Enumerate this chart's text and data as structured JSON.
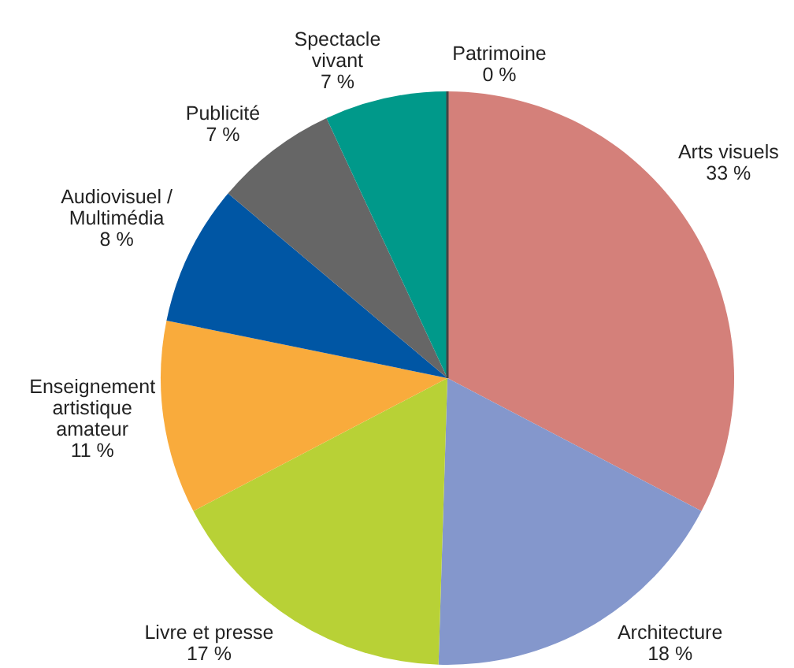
{
  "chart_data": {
    "type": "pie",
    "categories": [
      "Arts visuels",
      "Architecture",
      "Livre et presse",
      "Enseignement\nartistique\namateur",
      "Audiovisuel /\nMultimédia",
      "Publicité",
      "Spectacle\nvivant",
      "Patrimoine"
    ],
    "values": [
      33,
      18,
      17,
      11,
      8,
      7,
      7,
      0
    ],
    "value_labels": [
      "33 %",
      "18 %",
      "17 %",
      "11 %",
      "8 %",
      "7 %",
      "7 %",
      "0 %"
    ],
    "colors": [
      "#d4807a",
      "#8497cc",
      "#b8d136",
      "#f9ab3c",
      "#0056a4",
      "#666666",
      "#00998a",
      "#444444"
    ]
  }
}
